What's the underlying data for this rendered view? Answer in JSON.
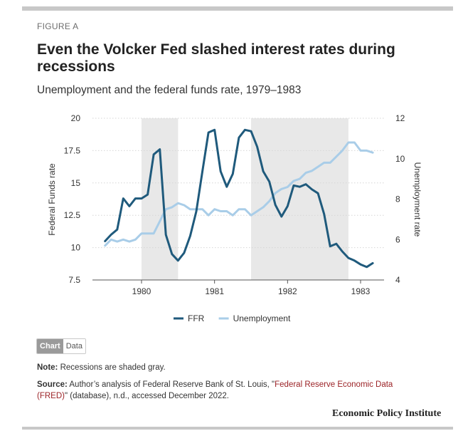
{
  "figure_label": "FIGURE A",
  "title": "Even the Volcker Fed slashed interest rates during recessions",
  "subtitle": "Unemployment and the federal funds rate, 1979–1983",
  "toggle": {
    "chart_label": "Chart",
    "data_label": "Data"
  },
  "note": {
    "label": "Note:",
    "text": "Recessions are shaded gray."
  },
  "source": {
    "label": "Source:",
    "text_before": "Author’s analysis of Federal Reserve Bank of St. Louis, \"",
    "link_text": "Federal Reserve Economic Data (FRED)",
    "text_after": "\" (database), n.d., accessed December 2022."
  },
  "brand": "Economic Policy Institute",
  "colors": {
    "ffr": "#1f5a7c",
    "unemployment": "#a9cde8",
    "recession": "#e8e8e8",
    "grid": "#d6d6d6"
  },
  "chart_data": {
    "type": "line",
    "xlabel": "",
    "ylabel_left": "Federal Funds rate",
    "ylabel_right": "Unemployment rate",
    "x_ticks": [
      "1980",
      "1981",
      "1982",
      "1983"
    ],
    "ylim_left": [
      7.5,
      20
    ],
    "ylim_right": [
      4,
      12
    ],
    "yticks_left": [
      "7.5",
      "10",
      "12.5",
      "15",
      "17.5",
      "20"
    ],
    "yticks_right": [
      "4",
      "6",
      "8",
      "10",
      "12"
    ],
    "grid": true,
    "legend": "bottom",
    "recessions": [
      [
        "1980-01",
        "1980-07"
      ],
      [
        "1981-07",
        "1982-11"
      ]
    ],
    "series": [
      {
        "name": "FFR",
        "axis": "left",
        "dates": [
          "1979-07",
          "1979-08",
          "1979-09",
          "1979-10",
          "1979-11",
          "1979-12",
          "1980-01",
          "1980-02",
          "1980-03",
          "1980-04",
          "1980-05",
          "1980-06",
          "1980-07",
          "1980-08",
          "1980-09",
          "1980-10",
          "1980-11",
          "1980-12",
          "1981-01",
          "1981-02",
          "1981-03",
          "1981-04",
          "1981-05",
          "1981-06",
          "1981-07",
          "1981-08",
          "1981-09",
          "1981-10",
          "1981-11",
          "1981-12",
          "1982-01",
          "1982-02",
          "1982-03",
          "1982-04",
          "1982-05",
          "1982-06",
          "1982-07",
          "1982-08",
          "1982-09",
          "1982-10",
          "1982-11",
          "1982-12",
          "1983-01",
          "1983-02",
          "1983-03"
        ],
        "values": [
          10.5,
          11.0,
          11.4,
          13.8,
          13.2,
          13.8,
          13.8,
          14.1,
          17.2,
          17.6,
          11.0,
          9.5,
          9.0,
          9.6,
          10.9,
          12.8,
          15.9,
          18.9,
          19.1,
          15.9,
          14.7,
          15.7,
          18.5,
          19.1,
          19.0,
          17.8,
          15.9,
          15.1,
          13.3,
          12.4,
          13.2,
          14.8,
          14.7,
          14.9,
          14.5,
          14.2,
          12.6,
          10.1,
          10.3,
          9.7,
          9.2,
          9.0,
          8.7,
          8.5,
          8.8
        ]
      },
      {
        "name": "Unemployment",
        "axis": "right",
        "dates": [
          "1979-07",
          "1979-08",
          "1979-09",
          "1979-10",
          "1979-11",
          "1979-12",
          "1980-01",
          "1980-02",
          "1980-03",
          "1980-04",
          "1980-05",
          "1980-06",
          "1980-07",
          "1980-08",
          "1980-09",
          "1980-10",
          "1980-11",
          "1980-12",
          "1981-01",
          "1981-02",
          "1981-03",
          "1981-04",
          "1981-05",
          "1981-06",
          "1981-07",
          "1981-08",
          "1981-09",
          "1981-10",
          "1981-11",
          "1981-12",
          "1982-01",
          "1982-02",
          "1982-03",
          "1982-04",
          "1982-05",
          "1982-06",
          "1982-07",
          "1982-08",
          "1982-09",
          "1982-10",
          "1982-11",
          "1982-12",
          "1983-01",
          "1983-02",
          "1983-03"
        ],
        "values": [
          5.7,
          6.0,
          5.9,
          6.0,
          5.9,
          6.0,
          6.3,
          6.3,
          6.3,
          6.9,
          7.5,
          7.6,
          7.8,
          7.7,
          7.5,
          7.5,
          7.5,
          7.2,
          7.5,
          7.4,
          7.4,
          7.2,
          7.5,
          7.5,
          7.2,
          7.4,
          7.6,
          7.9,
          8.3,
          8.5,
          8.6,
          8.9,
          9.0,
          9.3,
          9.4,
          9.6,
          9.8,
          9.8,
          10.1,
          10.4,
          10.8,
          10.8,
          10.4,
          10.4,
          10.3
        ]
      }
    ]
  }
}
